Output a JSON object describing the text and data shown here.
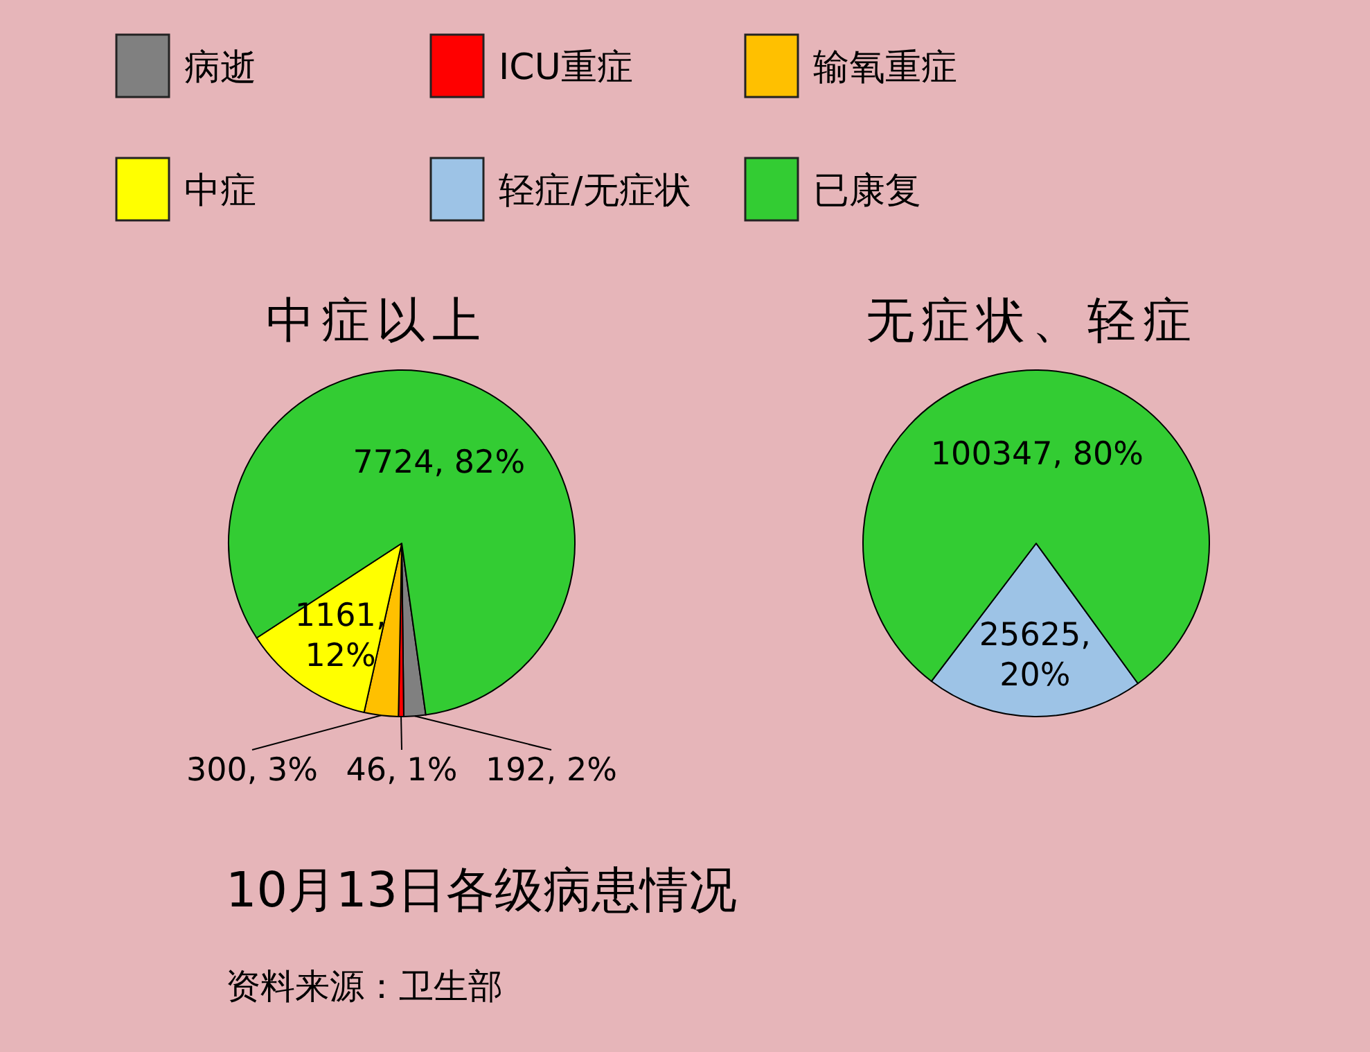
{
  "chart_data": [
    {
      "type": "pie",
      "title": "中症以上",
      "categories": [
        "病逝",
        "ICU重症",
        "输氧重症",
        "中症",
        "已康复"
      ],
      "values": [
        192,
        46,
        300,
        1161,
        7724
      ],
      "colors": [
        "#808080",
        "#ff0000",
        "#ffc000",
        "#ffff00",
        "#33cc33"
      ],
      "value_labels": [
        "192, 2%",
        "46, 1%",
        "300, 3%",
        "1161, 12%",
        "7724, 82%"
      ],
      "legend": "top",
      "annotations": [
        "10月13日各级病患情况",
        "资料来源：卫生部"
      ]
    },
    {
      "type": "pie",
      "title": "无症状、轻症",
      "categories": [
        "轻症/无症状",
        null
      ],
      "values": [
        25625,
        100347
      ],
      "colors": [
        "#9dc3e6",
        "#33cc33"
      ],
      "value_labels": [
        "25625, 20%",
        "100347, 80%"
      ],
      "legend": "top"
    }
  ]
}
